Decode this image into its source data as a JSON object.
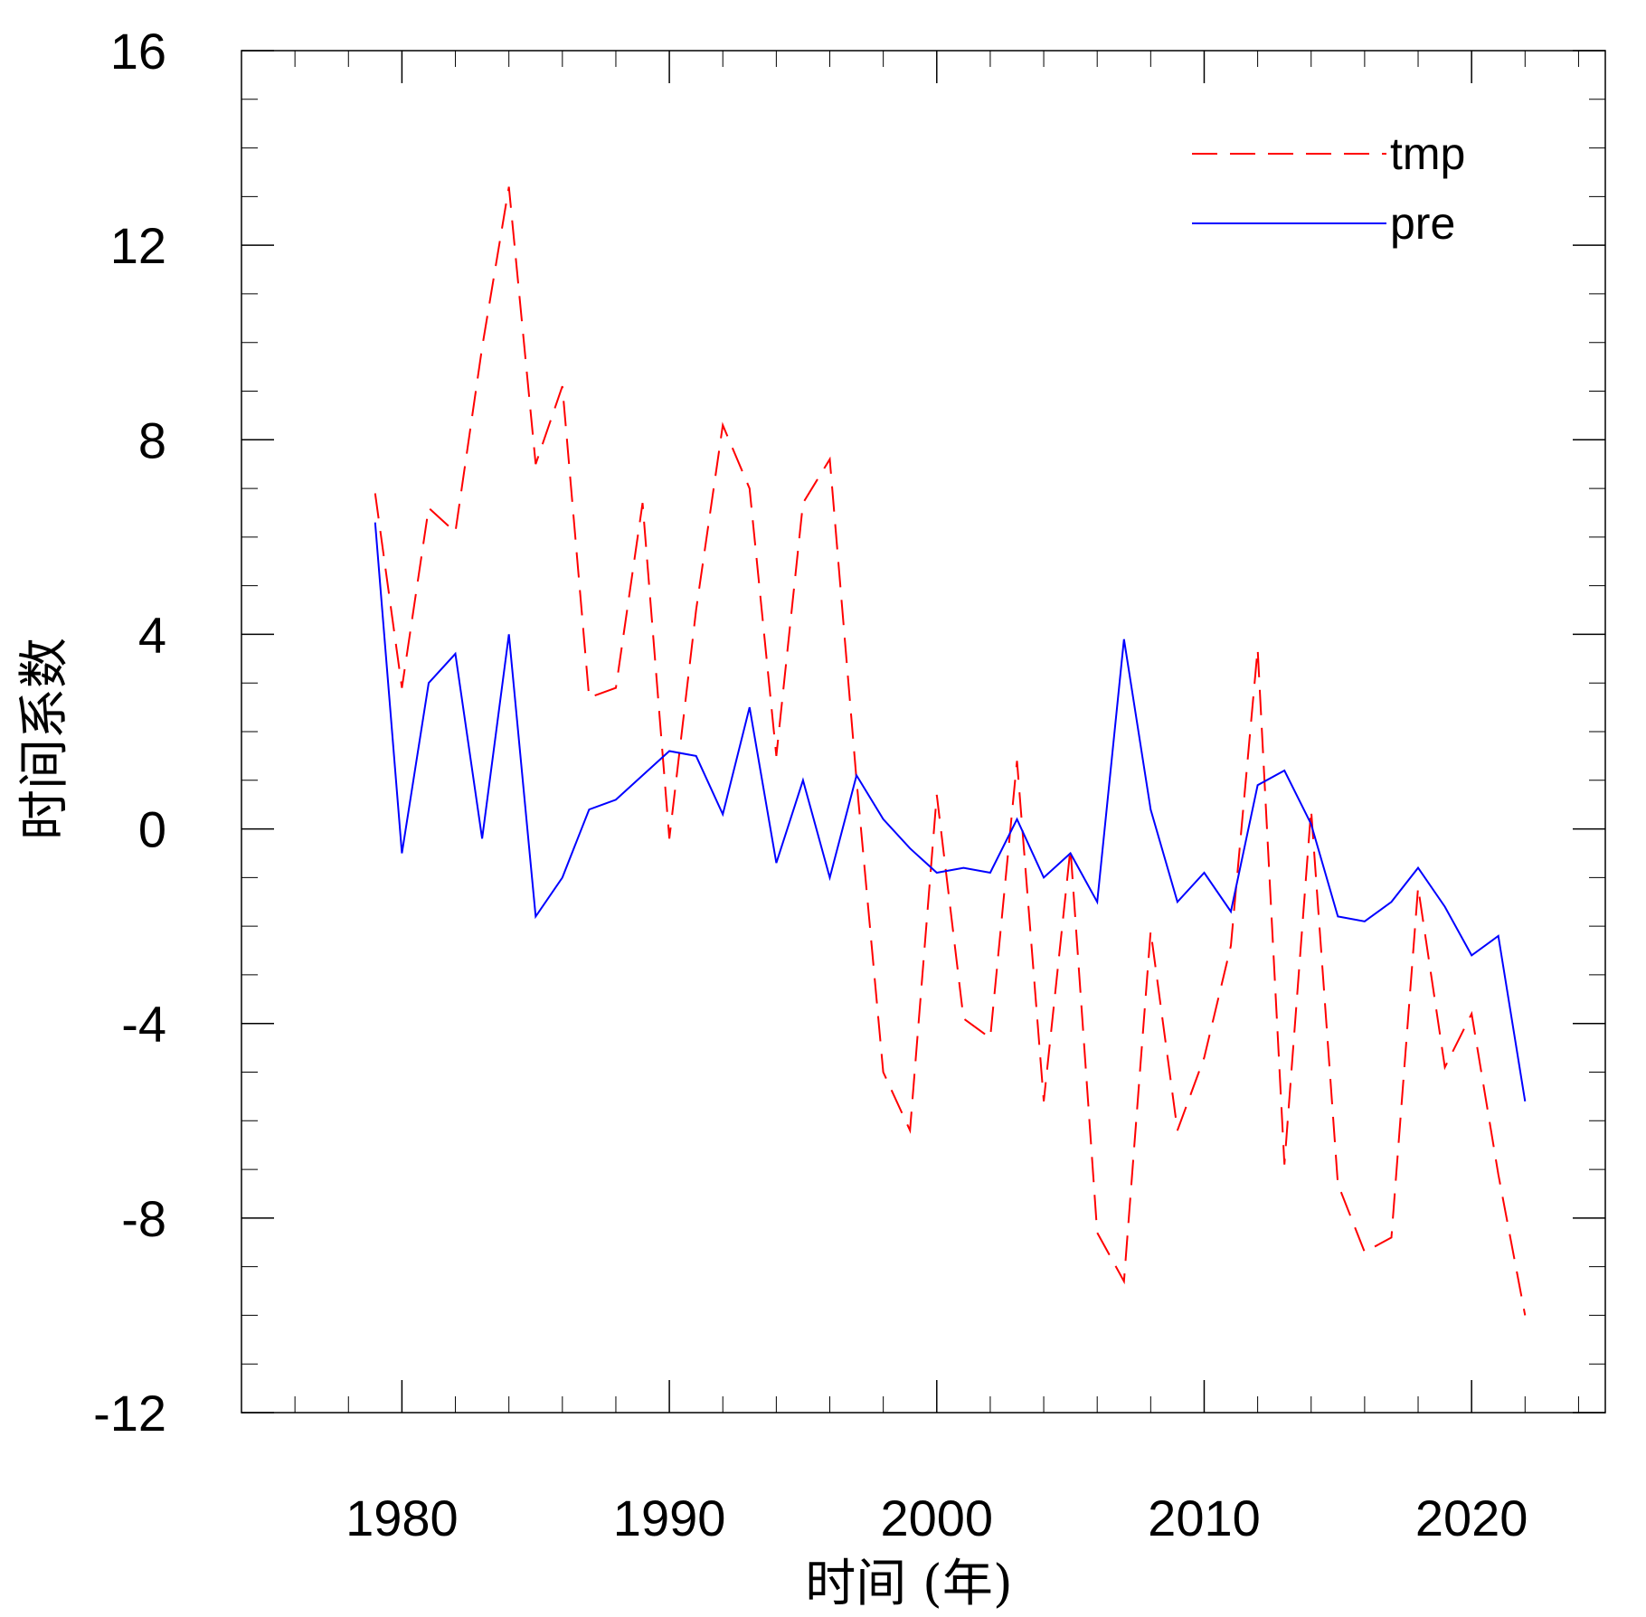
{
  "chart_data": {
    "type": "line",
    "title": "",
    "xlabel": "时间 (年)",
    "ylabel": "时间系数",
    "xlim": [
      1974,
      2025
    ],
    "ylim": [
      -12,
      16
    ],
    "x_major_ticks": [
      1980,
      1990,
      2000,
      2010,
      2020
    ],
    "x_minor_step": 2,
    "y_major_ticks": [
      16,
      12,
      8,
      4,
      0,
      -4,
      -8,
      -12
    ],
    "y_minor_step": 1,
    "legend_position": "top-right",
    "x": [
      1979,
      1980,
      1981,
      1982,
      1983,
      1984,
      1985,
      1986,
      1987,
      1988,
      1989,
      1990,
      1991,
      1992,
      1993,
      1994,
      1995,
      1996,
      1997,
      1998,
      1999,
      2000,
      2001,
      2002,
      2003,
      2004,
      2005,
      2006,
      2007,
      2008,
      2009,
      2010,
      2011,
      2012,
      2013,
      2014,
      2015,
      2016,
      2017,
      2018,
      2019,
      2020,
      2021,
      2022
    ],
    "series": [
      {
        "name": "tmp",
        "color": "#ff0000",
        "style": "dashed",
        "values": [
          6.9,
          2.9,
          6.6,
          6.1,
          9.9,
          13.2,
          7.5,
          9.1,
          2.7,
          2.9,
          6.7,
          -0.2,
          4.5,
          8.3,
          7.0,
          1.5,
          6.7,
          7.6,
          1.0,
          -5.0,
          -6.2,
          0.7,
          -3.9,
          -4.3,
          1.4,
          -5.6,
          -0.4,
          -8.3,
          -9.3,
          -2.1,
          -6.2,
          -4.7,
          -2.4,
          3.7,
          -6.9,
          0.4,
          -7.3,
          -8.7,
          -8.4,
          -1.2,
          -4.9,
          -3.8,
          -7.1,
          -10.0
        ]
      },
      {
        "name": "pre",
        "color": "#0000ff",
        "style": "solid",
        "values": [
          6.3,
          -0.5,
          3.0,
          3.6,
          -0.2,
          4.0,
          -1.8,
          -1.0,
          0.4,
          0.6,
          1.1,
          1.6,
          1.5,
          0.3,
          2.5,
          -0.7,
          1.0,
          -1.0,
          1.1,
          0.2,
          -0.4,
          -0.9,
          -0.8,
          -0.9,
          0.2,
          -1.0,
          -0.5,
          -1.5,
          3.9,
          0.4,
          -1.5,
          -0.9,
          -1.7,
          0.9,
          1.2,
          0.1,
          -1.8,
          -1.9,
          -1.5,
          -0.8,
          -1.6,
          -2.6,
          -2.2,
          -5.6
        ]
      }
    ]
  }
}
